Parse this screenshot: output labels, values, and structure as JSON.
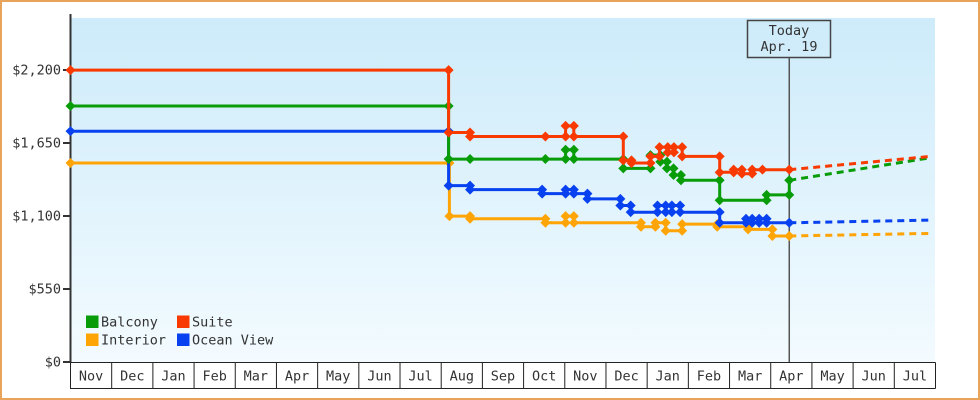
{
  "window": {
    "border_color": "#e9a45c",
    "background": "#ffffff"
  },
  "today_flag": {
    "line1": "Today",
    "line2": "Apr. 19",
    "month_position": 17.45
  },
  "legend": {
    "items": [
      {
        "label": "Balcony",
        "color": "#089c08"
      },
      {
        "label": "Suite",
        "color": "#f93a00"
      },
      {
        "label": "Interior",
        "color": "#ffa405"
      },
      {
        "label": "Ocean View",
        "color": "#0841f0"
      }
    ]
  },
  "chart_data": {
    "type": "line",
    "title": "",
    "xlabel": "",
    "ylabel": "",
    "plot_background": {
      "top_color": "#cdebfa",
      "bottom_color": "#f3fbff"
    },
    "axis_color": "#333333",
    "y_axis": {
      "ticks": [
        {
          "label": "$2,200",
          "value": 2200
        },
        {
          "label": "$1,650",
          "value": 1650
        },
        {
          "label": "$1,100",
          "value": 1100
        },
        {
          "label": "$550",
          "value": 550
        },
        {
          "label": "$0",
          "value": 0
        }
      ],
      "ylim": [
        0,
        2400
      ]
    },
    "x_axis": {
      "months": [
        "Nov",
        "Dec",
        "Jan",
        "Feb",
        "Mar",
        "Apr",
        "May",
        "Jun",
        "Jul",
        "Aug",
        "Sep",
        "Oct",
        "Nov",
        "Dec",
        "Jan",
        "Feb",
        "Mar",
        "Apr",
        "May",
        "Jun",
        "Jul"
      ]
    },
    "today_month_position": 17.45,
    "series": [
      {
        "name": "Interior",
        "color": "#ffa405",
        "points": [
          [
            0,
            1499
          ],
          [
            9.2,
            1499
          ],
          [
            9.2,
            1099
          ],
          [
            9.7,
            1099
          ],
          [
            9.7,
            1079
          ],
          [
            11.53,
            1079
          ],
          [
            11.53,
            1049
          ],
          [
            12.02,
            1049
          ],
          [
            12.02,
            1099
          ],
          [
            12.22,
            1099
          ],
          [
            12.22,
            1049
          ],
          [
            13.85,
            1049
          ],
          [
            13.85,
            1019
          ],
          [
            14.2,
            1019
          ],
          [
            14.2,
            1049
          ],
          [
            14.45,
            1049
          ],
          [
            14.45,
            989
          ],
          [
            14.85,
            989
          ],
          [
            14.85,
            1039
          ],
          [
            15.7,
            1039
          ],
          [
            15.7,
            1019
          ],
          [
            16.45,
            1019
          ],
          [
            16.45,
            999
          ],
          [
            17.04,
            999
          ],
          [
            17.04,
            949
          ],
          [
            17.45,
            949
          ]
        ],
        "projection": [
          [
            17.45,
            949
          ],
          [
            20.88,
            969
          ]
        ]
      },
      {
        "name": "Ocean View",
        "color": "#0841f0",
        "points": [
          [
            0,
            1739
          ],
          [
            9.18,
            1739
          ],
          [
            9.18,
            1329
          ],
          [
            9.7,
            1329
          ],
          [
            9.7,
            1299
          ],
          [
            11.45,
            1299
          ],
          [
            11.45,
            1269
          ],
          [
            12.02,
            1269
          ],
          [
            12.02,
            1299
          ],
          [
            12.22,
            1299
          ],
          [
            12.22,
            1269
          ],
          [
            12.55,
            1269
          ],
          [
            12.55,
            1229
          ],
          [
            13.35,
            1229
          ],
          [
            13.35,
            1179
          ],
          [
            13.6,
            1179
          ],
          [
            13.6,
            1129
          ],
          [
            14.25,
            1129
          ],
          [
            14.25,
            1179
          ],
          [
            14.45,
            1179
          ],
          [
            14.45,
            1129
          ],
          [
            14.6,
            1129
          ],
          [
            14.6,
            1179
          ],
          [
            14.8,
            1179
          ],
          [
            14.8,
            1129
          ],
          [
            15.76,
            1129
          ],
          [
            15.76,
            1049
          ],
          [
            16.4,
            1049
          ],
          [
            16.4,
            1079
          ],
          [
            16.55,
            1079
          ],
          [
            16.55,
            1049
          ],
          [
            16.72,
            1049
          ],
          [
            16.72,
            1079
          ],
          [
            16.9,
            1079
          ],
          [
            16.9,
            1049
          ],
          [
            17.45,
            1049
          ]
        ],
        "projection": [
          [
            17.45,
            1049
          ],
          [
            20.88,
            1069
          ]
        ]
      },
      {
        "name": "Balcony",
        "color": "#089c08",
        "points": [
          [
            0,
            1929
          ],
          [
            9.18,
            1929
          ],
          [
            9.18,
            1529
          ],
          [
            9.7,
            1529
          ],
          [
            11.53,
            1529
          ],
          [
            12.02,
            1529
          ],
          [
            12.02,
            1599
          ],
          [
            12.22,
            1599
          ],
          [
            12.22,
            1529
          ],
          [
            13.42,
            1529
          ],
          [
            13.42,
            1459
          ],
          [
            14.08,
            1459
          ],
          [
            14.08,
            1559
          ],
          [
            14.32,
            1559
          ],
          [
            14.32,
            1509
          ],
          [
            14.48,
            1509
          ],
          [
            14.48,
            1459
          ],
          [
            14.64,
            1459
          ],
          [
            14.64,
            1409
          ],
          [
            14.82,
            1409
          ],
          [
            14.82,
            1369
          ],
          [
            15.76,
            1369
          ],
          [
            15.76,
            1219
          ],
          [
            16.9,
            1219
          ],
          [
            16.9,
            1259
          ],
          [
            17.45,
            1259
          ],
          [
            17.45,
            1369
          ]
        ],
        "projection": [
          [
            17.45,
            1369
          ],
          [
            20.88,
            1539
          ]
        ]
      },
      {
        "name": "Suite",
        "color": "#f93a00",
        "points": [
          [
            0,
            2199
          ],
          [
            9.18,
            2199
          ],
          [
            9.18,
            1729
          ],
          [
            9.7,
            1729
          ],
          [
            9.7,
            1699
          ],
          [
            11.53,
            1699
          ],
          [
            12.02,
            1699
          ],
          [
            12.02,
            1779
          ],
          [
            12.22,
            1779
          ],
          [
            12.22,
            1699
          ],
          [
            13.42,
            1699
          ],
          [
            13.42,
            1519
          ],
          [
            13.62,
            1519
          ],
          [
            13.62,
            1499
          ],
          [
            14.08,
            1499
          ],
          [
            14.08,
            1549
          ],
          [
            14.3,
            1549
          ],
          [
            14.3,
            1619
          ],
          [
            14.5,
            1619
          ],
          [
            14.5,
            1579
          ],
          [
            14.65,
            1579
          ],
          [
            14.65,
            1619
          ],
          [
            14.85,
            1619
          ],
          [
            14.85,
            1549
          ],
          [
            15.76,
            1549
          ],
          [
            15.76,
            1429
          ],
          [
            16.1,
            1429
          ],
          [
            16.1,
            1449
          ],
          [
            16.3,
            1449
          ],
          [
            16.3,
            1419
          ],
          [
            16.55,
            1419
          ],
          [
            16.55,
            1449
          ],
          [
            16.8,
            1449
          ],
          [
            17.45,
            1449
          ]
        ],
        "projection": [
          [
            17.45,
            1449
          ],
          [
            20.88,
            1549
          ]
        ]
      }
    ]
  }
}
